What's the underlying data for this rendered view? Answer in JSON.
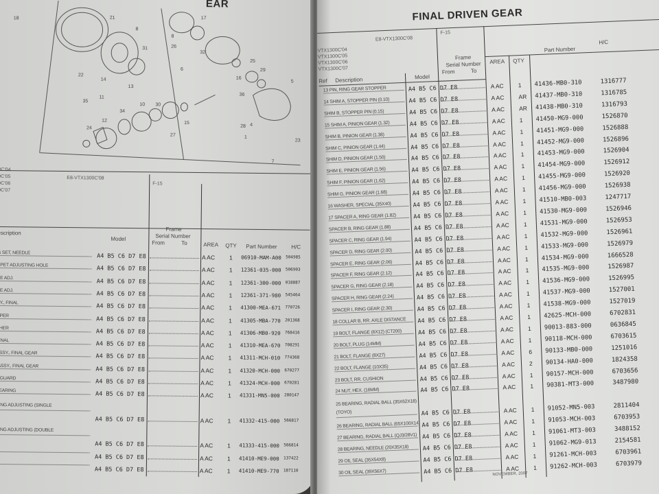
{
  "left_page": {
    "title_fragment": "EAR",
    "model_codes": [
      "0C'04",
      "0C'05",
      "0C'06",
      "0C'07"
    ],
    "model_main": "E8-VTX1300C'08",
    "frame_code": "F-15",
    "headers": {
      "description": "escription",
      "model": "Model",
      "frame": "Frame",
      "serial": "Serial Number",
      "from": "From",
      "to": "To",
      "area": "AREA",
      "qty": "QTY",
      "part_number": "Part Number",
      "hc": "H/C"
    },
    "diagram_callouts": [
      "18",
      "21",
      "8",
      "31",
      "22",
      "14",
      "13",
      "35",
      "11",
      "12",
      "24",
      "34",
      "10",
      "30",
      "27",
      "15",
      "6",
      "8",
      "26",
      "17",
      "32",
      "16",
      "25",
      "29",
      "5",
      "36",
      "28",
      "4",
      "1",
      "7",
      "23"
    ],
    "rows": [
      {
        "desc": "G SET, NEEDLE",
        "model": "A4 B5 C6 D7 E8",
        "area": "A AC",
        "qty": "1",
        "pn": "06910-MAM-A00",
        "hc": "504985"
      },
      {
        "desc": "PPET ADJUSTING HOLE",
        "model": "A4 B5 C6 D7 E8",
        "area": "A AC",
        "qty": "1",
        "pn": "12361-035-000",
        "hc": "506903"
      },
      {
        "desc": "VE ADJ.",
        "model": "A4 B5 C6 D7 E8",
        "area": "A AC",
        "qty": "1",
        "pn": "12361-300-000",
        "hc": "018887"
      },
      {
        "desc": "VE ADJ.",
        "model": "A4 B5 C6 D7 E8",
        "area": "A AC",
        "qty": "1",
        "pn": "12361-371-980",
        "hc": "545464"
      },
      {
        "desc": "SY., FINAL",
        "model": "A4 B5 C6 D7 E8",
        "area": "A AC",
        "qty": "1",
        "pn": "41300-MEA-671",
        "hc": "770726"
      },
      {
        "desc": "PPER",
        "model": "A4 B5 C6 D7 E8",
        "area": "A AC",
        "qty": "1",
        "pn": "41305-MBA-770",
        "hc": "201368"
      },
      {
        "desc": "THER",
        "model": "A4 B5 C6 D7 E8",
        "area": "A AC",
        "qty": "1",
        "pn": "41306-MB0-920",
        "hc": "768416"
      },
      {
        "desc": "FINAL",
        "model": "A4 B5 C6 D7 E8",
        "area": "A AC",
        "qty": "1",
        "pn": "41310-MEA-670",
        "hc": "708291"
      },
      {
        "desc": "ASSY., FINAL GEAR",
        "model": "A4 B5 C6 D7 E8",
        "area": "A AC",
        "qty": "1",
        "pn": "41311-MCH-010",
        "hc": "774368"
      },
      {
        "desc": "-ASSY., FINAL GEAR",
        "model": "A4 B5 C6 D7 E8",
        "area": "A AC",
        "qty": "1",
        "pn": "41320-MCH-000",
        "hc": "670277"
      },
      {
        "desc": "T GUARD",
        "model": "A4 B5 C6 D7 E8",
        "area": "A AC",
        "qty": "1",
        "pn": "41324-MCH-000",
        "hc": "670281"
      },
      {
        "desc": "BEARING",
        "model": "A4 B5 C6 D7 E8",
        "area": "A AC",
        "qty": "1",
        "pn": "41331-MN5-000",
        "hc": "280147"
      },
      {
        "desc": "RING ADJUSTING (SINGLE",
        "model": "A4 B5 C6 D7 E8",
        "area": "A AC",
        "qty": "1",
        "pn": "41332-415-000",
        "hc": "566817",
        "tall": true
      },
      {
        "desc": "RING ADJUSTING (DOUBLE",
        "model": "A4 B5 C6 D7 E8",
        "area": "A AC",
        "qty": "1",
        "pn": "41333-415-000",
        "hc": "566814",
        "tall": true
      },
      {
        "desc": "",
        "model": "A4 B5 C6 D7 E8",
        "area": "A AC",
        "qty": "1",
        "pn": "41410-ME9-000",
        "hc": "137422"
      },
      {
        "desc": "",
        "model": "A4 B5 C6 D7 E8",
        "area": "A AC",
        "qty": "1",
        "pn": "41410-ME9-770",
        "hc": "187110"
      }
    ]
  },
  "right_page": {
    "title": "FINAL DRIVEN GEAR",
    "model_codes": [
      "VTX1300C'04",
      "VTX1300C'05",
      "VTX1300C'06",
      "VTX1300C'07"
    ],
    "model_main": "E8-VTX1300C'08",
    "frame_code": "F-15",
    "headers": {
      "ref": "Ref",
      "description": "Description",
      "model": "Model",
      "frame": "Frame",
      "serial": "Serial Number",
      "from": "From",
      "to": "To",
      "area": "AREA",
      "qty": "QTY",
      "part_number": "Part Number",
      "hc": "H/C"
    },
    "rows": [
      {
        "desc": "13 PIN, RING GEAR STOPPER",
        "model": "A4 B5 C6 D7 E8",
        "area": "A AC",
        "qty": "1",
        "pn": "41436-MB0-310",
        "hc": "1316777"
      },
      {
        "desc": "14 SHIM A, STOPPER PIN (0.10)",
        "model": "A4 B5 C6 D7 E8",
        "area": "A AC",
        "qty": "AR",
        "pn": "41437-MB0-310",
        "hc": "1316785"
      },
      {
        "desc": "SHIM B, STOPPER PIN (0.15)",
        "model": "A4 B5 C6 D7 E8",
        "area": "A AC",
        "qty": "AR",
        "pn": "41438-MB0-310",
        "hc": "1316793"
      },
      {
        "desc": "15 SHIM A, PINION GEAR (1.32)",
        "model": "A4 B5 C6 D7 E8",
        "area": "A AC",
        "qty": "1",
        "pn": "41450-MG9-000",
        "hc": "1526870"
      },
      {
        "desc": "SHIM B, PINION GEAR (1.38)",
        "model": "A4 B5 C6 D7 E8",
        "area": "A AC",
        "qty": "1",
        "pn": "41451-MG9-000",
        "hc": "1526888"
      },
      {
        "desc": "SHIM C, PINION GEAR (1.44)",
        "model": "A4 B5 C6 D7 E8",
        "area": "A AC",
        "qty": "1",
        "pn": "41452-MG9-000",
        "hc": "1526896"
      },
      {
        "desc": "SHIM D, PINION GEAR (1.50)",
        "model": "A4 B5 C6 D7 E8",
        "area": "A AC",
        "qty": "1",
        "pn": "41453-MG9-000",
        "hc": "1526904"
      },
      {
        "desc": "SHIM E, PINION GEAR (1.56)",
        "model": "A4 B5 C6 D7 E8",
        "area": "A AC",
        "qty": "1",
        "pn": "41454-MG9-000",
        "hc": "1526912"
      },
      {
        "desc": "SHIM F, PINION GEAR (1.62)",
        "model": "A4 B5 C6 D7 E8",
        "area": "A AC",
        "qty": "1",
        "pn": "41455-MG9-000",
        "hc": "1526920"
      },
      {
        "desc": "SHIM G, PINION GEAR (1.68)",
        "model": "A4 B5 C6 D7 E8",
        "area": "A AC",
        "qty": "1",
        "pn": "41456-MG9-000",
        "hc": "1526938"
      },
      {
        "desc": "16 WASHER, SPECIAL (35X40)",
        "model": "A4 B5 C6 D7 E8",
        "area": "A AC",
        "qty": "1",
        "pn": "41510-MB0-003",
        "hc": "1247717"
      },
      {
        "desc": "17 SPACER A, RING GEAR (1.82)",
        "model": "A4 B5 C6 D7 E8",
        "area": "A AC",
        "qty": "1",
        "pn": "41530-MG9-000",
        "hc": "1526946"
      },
      {
        "desc": "SPACER B, RING GEAR (1.88)",
        "model": "A4 B5 C6 D7 E8",
        "area": "A AC",
        "qty": "1",
        "pn": "41531-MG9-000",
        "hc": "1526953"
      },
      {
        "desc": "SPACER C, RING GEAR (1.94)",
        "model": "A4 B5 C6 D7 E8",
        "area": "A AC",
        "qty": "1",
        "pn": "41532-MG9-000",
        "hc": "1526961"
      },
      {
        "desc": "SPACER D, RING GEAR (2.00)",
        "model": "A4 B5 C6 D7 E8",
        "area": "A AC",
        "qty": "1",
        "pn": "41533-MG9-000",
        "hc": "1526979"
      },
      {
        "desc": "SPACER E, RING GEAR (2.06)",
        "model": "A4 B5 C6 D7 E8",
        "area": "A AC",
        "qty": "1",
        "pn": "41534-MG9-000",
        "hc": "1666528"
      },
      {
        "desc": "SPACER F, RING GEAR (2.12)",
        "model": "A4 B5 C6 D7 E8",
        "area": "A AC",
        "qty": "1",
        "pn": "41535-MG9-000",
        "hc": "1526987"
      },
      {
        "desc": "SPACER G, RING GEAR (2.18)",
        "model": "A4 B5 C6 D7 E8",
        "area": "A AC",
        "qty": "1",
        "pn": "41536-MG9-000",
        "hc": "1526995"
      },
      {
        "desc": "SPACER H, RING GEAR (2.24)",
        "model": "A4 B5 C6 D7 E8",
        "area": "A AC",
        "qty": "1",
        "pn": "41537-MG9-000",
        "hc": "1527001"
      },
      {
        "desc": "SPACER I, RING GEAR (2.30)",
        "model": "A4 B5 C6 D7 E8",
        "area": "A AC",
        "qty": "1",
        "pn": "41538-MG9-000",
        "hc": "1527019"
      },
      {
        "desc": "18 COLLAR B, RR. AXLE DISTANCE",
        "model": "A4 B5 C6 D7 E8",
        "area": "A AC",
        "qty": "1",
        "pn": "42625-MCH-000",
        "hc": "6702831"
      },
      {
        "desc": "19 BOLT, FLANGE (6X12) (CT200)",
        "model": "A4 B5 C6 D7 E8",
        "area": "A AC",
        "qty": "1",
        "pn": "90013-883-000",
        "hc": "0636845"
      },
      {
        "desc": "20 BOLT, PLUG (14MM)",
        "model": "A4 B5 C6 D7 E8",
        "area": "A AC",
        "qty": "1",
        "pn": "90118-MCH-000",
        "hc": "6703615"
      },
      {
        "desc": "21 BOLT, FLANGE (8X27)",
        "model": "A4 B5 C6 D7 E8",
        "area": "A AC",
        "qty": "6",
        "pn": "90133-MB0-000",
        "hc": "1251016"
      },
      {
        "desc": "22 BOLT, FLANGE (10X35)",
        "model": "A4 B5 C6 D7 E8",
        "area": "A AC",
        "qty": "2",
        "pn": "90134-HA0-000",
        "hc": "1824358"
      },
      {
        "desc": "23 BOLT, RR. CUSHION",
        "model": "A4 B5 C6 D7 E8",
        "area": "A AC",
        "qty": "1",
        "pn": "90157-MCH-000",
        "hc": "6703656"
      },
      {
        "desc": "24 NUT, HEX. (16MM)",
        "model": "A4 B5 C6 D7 E8",
        "area": "A AC",
        "qty": "1",
        "pn": "90381-MT3-000",
        "hc": "3487980"
      },
      {
        "desc": "25 BEARING, RADIAL BALL (35X62X18) (TOYO)",
        "model": "A4 B5 C6 D7 E8",
        "area": "A AC",
        "qty": "1",
        "pn": "91052-MN5-003",
        "hc": "2811404",
        "tall": true
      },
      {
        "desc": "26 BEARING, RADIAL BALL (65X100X14)",
        "model": "A4 B5 C6 D7 E8",
        "area": "A AC",
        "qty": "1",
        "pn": "91053-MCH-003",
        "hc": "6703953"
      },
      {
        "desc": "27 BEARING, RADIAL BALL (QJ3/28V1)",
        "model": "A4 B5 C6 D7 E8",
        "area": "A AC",
        "qty": "1",
        "pn": "91061-MT3-003",
        "hc": "3488152"
      },
      {
        "desc": "28 BEARING, NEEDLE (20X35X18)",
        "model": "A4 B5 C6 D7 E8",
        "area": "A AC",
        "qty": "1",
        "pn": "91062-MG9-013",
        "hc": "2154581"
      },
      {
        "desc": "29 OIL SEAL (35X54X8)",
        "model": "A4 B5 C6 D7 E8",
        "area": "A AC",
        "qty": "1",
        "pn": "91261-MCH-003",
        "hc": "6703961"
      },
      {
        "desc": "30 OIL SEAL (39X56X7)",
        "model": "A4 B5 C6 D7 E8",
        "area": "A AC",
        "qty": "1",
        "pn": "91262-MCH-003",
        "hc": "6703979"
      }
    ],
    "footer": "NOVEMBER, 2007"
  }
}
